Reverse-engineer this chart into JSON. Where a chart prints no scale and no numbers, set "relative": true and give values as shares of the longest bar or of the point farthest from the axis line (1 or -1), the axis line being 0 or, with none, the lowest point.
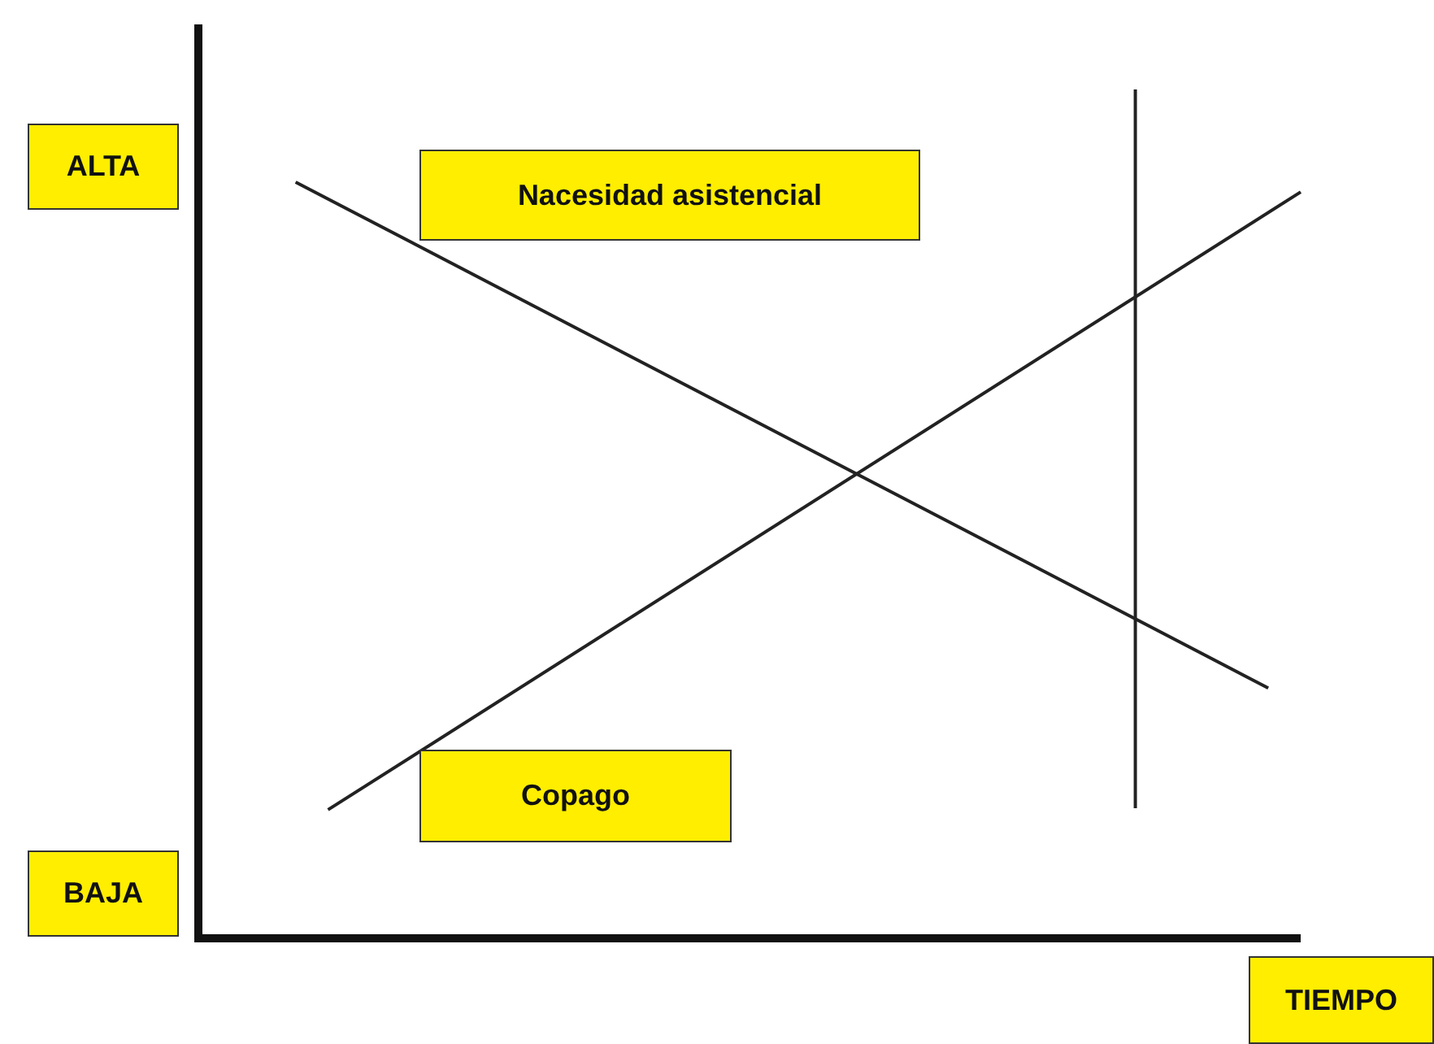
{
  "chart_data": {
    "type": "line",
    "relative": true,
    "xlabel": "TIEMPO",
    "annotations": [
      "ALTA",
      "BAJA"
    ],
    "categories": [
      null,
      null,
      null,
      null,
      null,
      null,
      null,
      null,
      null,
      null,
      null,
      null,
      null,
      null,
      null,
      null,
      null,
      null,
      null,
      null,
      null,
      null,
      null,
      null,
      null,
      null,
      null,
      null,
      null,
      null,
      null,
      null,
      null,
      null,
      null
    ],
    "series": [
      {
        "name": "Nacesidad asistencial",
        "color": "#222222",
        "values": [
          null,
          null,
          null,
          1,
          null,
          null,
          null,
          null,
          null,
          null,
          null,
          null,
          null,
          null,
          null,
          null,
          null,
          null,
          null,
          null,
          null,
          null,
          null,
          null,
          null,
          null,
          null,
          null,
          null,
          null,
          null,
          null,
          null,
          0.331,
          null
        ]
      },
      {
        "name": "Copago",
        "color": "#222222",
        "values": [
          null,
          null,
          null,
          null,
          0.17,
          null,
          null,
          null,
          null,
          null,
          null,
          null,
          null,
          null,
          null,
          null,
          null,
          null,
          null,
          null,
          null,
          null,
          null,
          null,
          null,
          null,
          null,
          null,
          null,
          null,
          null,
          null,
          null,
          null,
          0.987
        ]
      }
    ],
    "marker": "none",
    "legend": false
  }
}
